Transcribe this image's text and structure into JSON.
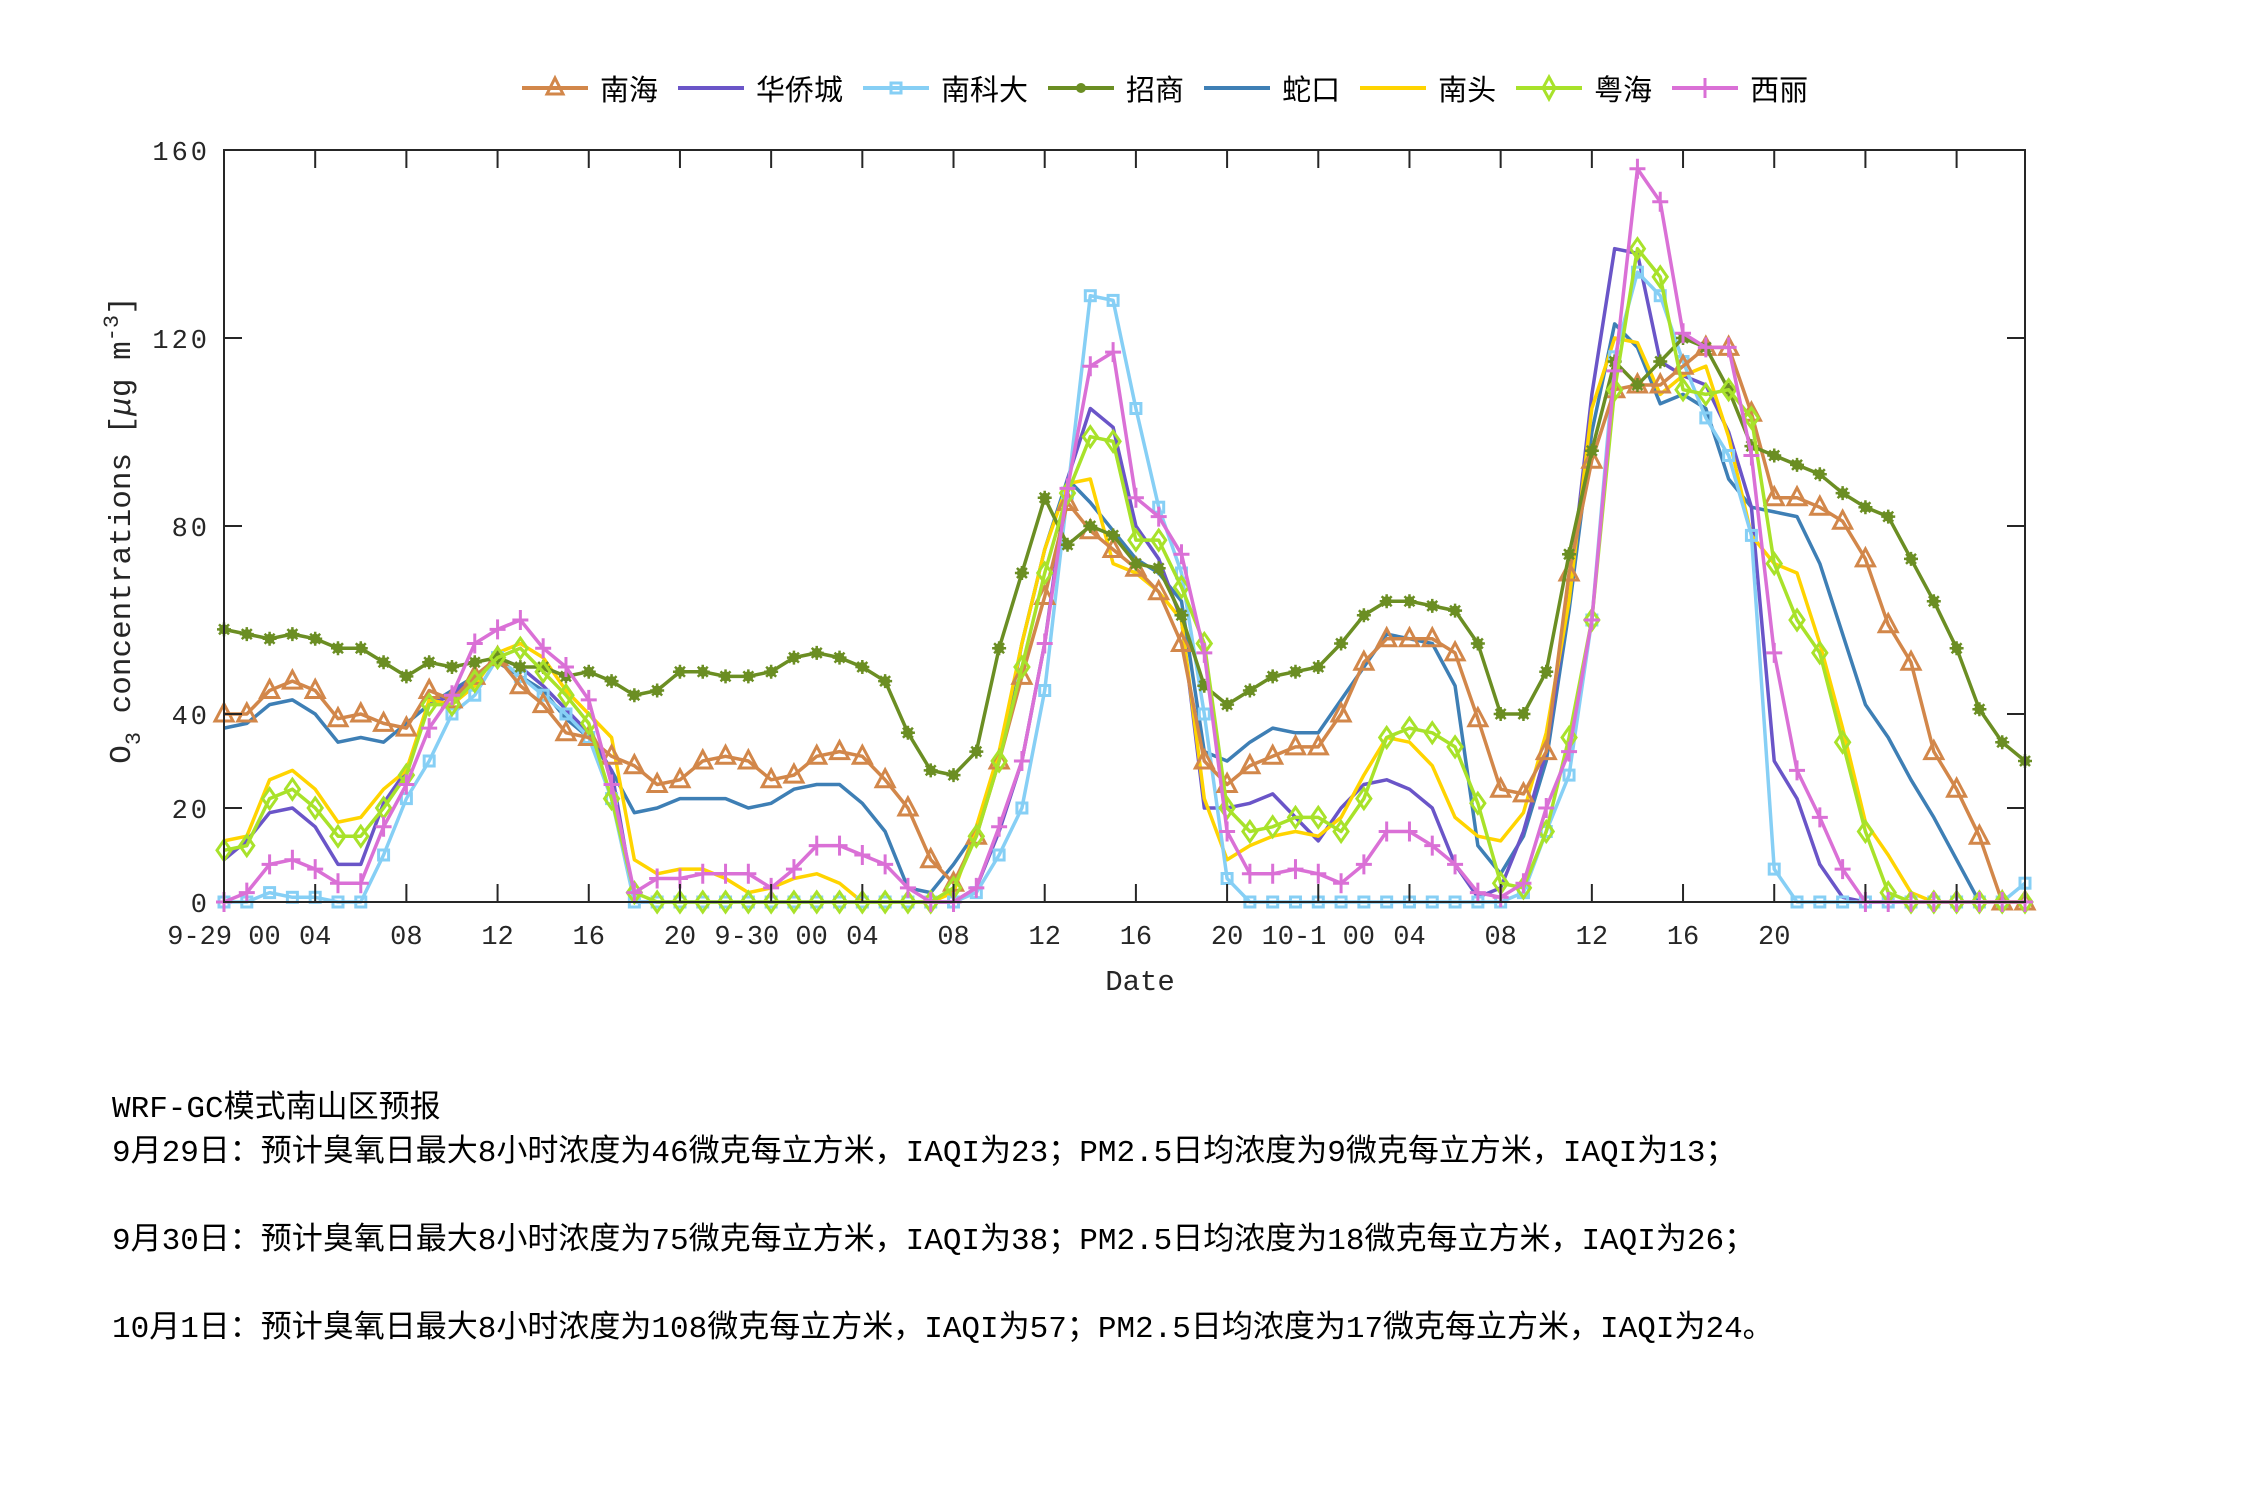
{
  "legend": [
    {
      "name": "南海",
      "color": "#D2874A",
      "marker": "triangle"
    },
    {
      "name": "华侨城",
      "color": "#6A55C8",
      "marker": "none"
    },
    {
      "name": "南科大",
      "color": "#86CFF5",
      "marker": "square"
    },
    {
      "name": "招商",
      "color": "#6B8E23",
      "marker": "star"
    },
    {
      "name": "蛇口",
      "color": "#3E7FB5",
      "marker": "none"
    },
    {
      "name": "南头",
      "color": "#FFD400",
      "marker": "none"
    },
    {
      "name": "粤海",
      "color": "#A8E22A",
      "marker": "diamond"
    },
    {
      "name": "西丽",
      "color": "#DA70D6",
      "marker": "plus"
    }
  ],
  "forecast": {
    "title": "WRF-GC模式南山区预报",
    "lines": [
      "9月29日：预计臭氧日最大8小时浓度为46微克每立方米，IAQI为23；PM2.5日均浓度为9微克每立方米，IAQI为13；",
      "9月30日：预计臭氧日最大8小时浓度为75微克每立方米，IAQI为38；PM2.5日均浓度为18微克每立方米，IAQI为26；",
      "10月1日：预计臭氧日最大8小时浓度为108微克每立方米，IAQI为57；PM2.5日均浓度为17微克每立方米，IAQI为24。"
    ]
  },
  "chart_data": {
    "type": "line",
    "title": "",
    "xlabel": "Date",
    "ylabel": "O3 concentrations [μg m-3]",
    "ylim": [
      0,
      160
    ],
    "xlim_hours": [
      0,
      79
    ],
    "y_ticks": [
      0,
      20,
      40,
      80,
      120,
      160
    ],
    "x_ticks": [
      {
        "hour": 0,
        "label": "9-29  00"
      },
      {
        "hour": 4,
        "label": "04"
      },
      {
        "hour": 8,
        "label": "08"
      },
      {
        "hour": 12,
        "label": "12"
      },
      {
        "hour": 16,
        "label": "16"
      },
      {
        "hour": 20,
        "label": "20"
      },
      {
        "hour": 24,
        "label": "9-30  00"
      },
      {
        "hour": 28,
        "label": "04"
      },
      {
        "hour": 32,
        "label": "08"
      },
      {
        "hour": 36,
        "label": "12"
      },
      {
        "hour": 40,
        "label": "16"
      },
      {
        "hour": 44,
        "label": "20"
      },
      {
        "hour": 48,
        "label": "10-1  00"
      },
      {
        "hour": 52,
        "label": "04"
      },
      {
        "hour": 56,
        "label": "08"
      },
      {
        "hour": 60,
        "label": "12"
      },
      {
        "hour": 64,
        "label": "16"
      },
      {
        "hour": 68,
        "label": "20"
      },
      {
        "hour": 72,
        "label": ""
      },
      {
        "hour": 76,
        "label": ""
      }
    ],
    "grid": false,
    "legend_position": "top",
    "x_start": "9-29 00:00",
    "x_step": "1 hour",
    "series": [
      {
        "name": "南海",
        "values": [
          40,
          40,
          45,
          47,
          45,
          39,
          40,
          38,
          37,
          45,
          43,
          48,
          52,
          46,
          42,
          36,
          35,
          31,
          29,
          25,
          26,
          30,
          31,
          30,
          26,
          27,
          31,
          32,
          31,
          26,
          20,
          9,
          4,
          14,
          30,
          48,
          65,
          85,
          79,
          75,
          71,
          66,
          55,
          30,
          25,
          29,
          31,
          33,
          33,
          40,
          51,
          56,
          56,
          56,
          53,
          39,
          24,
          23,
          32,
          70,
          94,
          109,
          110,
          110,
          114,
          118,
          118,
          104,
          86,
          86,
          84,
          81,
          73,
          59,
          51,
          32,
          24,
          14,
          0,
          0,
          0,
          0,
          5
        ]
      },
      {
        "name": "华侨城",
        "values": [
          9,
          13,
          19,
          20,
          16,
          8,
          8,
          21,
          28,
          42,
          44,
          48,
          52,
          50,
          46,
          41,
          36,
          28,
          0,
          0,
          0,
          0,
          0,
          0,
          0,
          0,
          0,
          0,
          0,
          0,
          0,
          0,
          0,
          3,
          15,
          30,
          55,
          90,
          105,
          101,
          80,
          73,
          60,
          20,
          20,
          21,
          23,
          18,
          13,
          20,
          25,
          26,
          24,
          20,
          8,
          1,
          3,
          15,
          32,
          65,
          108,
          139,
          138,
          115,
          112,
          110,
          100,
          84,
          30,
          22,
          8,
          1,
          0,
          0,
          0,
          0,
          0,
          0,
          0,
          0
        ]
      },
      {
        "name": "南科大",
        "values": [
          0,
          0,
          2,
          1,
          1,
          0,
          0,
          10,
          22,
          30,
          40,
          44,
          52,
          48,
          44,
          40,
          35,
          22,
          0,
          0,
          0,
          0,
          0,
          0,
          0,
          0,
          0,
          0,
          0,
          0,
          0,
          0,
          0,
          2,
          10,
          20,
          45,
          87,
          129,
          128,
          105,
          84,
          70,
          40,
          5,
          0,
          0,
          0,
          0,
          0,
          0,
          0,
          0,
          0,
          0,
          0,
          0,
          2,
          15,
          27,
          60,
          116,
          134,
          129,
          115,
          103,
          95,
          78,
          7,
          0,
          0,
          0,
          0,
          0,
          0,
          0,
          0,
          0,
          0,
          4
        ]
      },
      {
        "name": "招商",
        "values": [
          58,
          57,
          56,
          57,
          56,
          54,
          54,
          51,
          48,
          51,
          50,
          51,
          52,
          50,
          50,
          48,
          49,
          47,
          44,
          45,
          49,
          49,
          48,
          48,
          49,
          52,
          53,
          52,
          50,
          47,
          36,
          28,
          27,
          32,
          54,
          70,
          86,
          76,
          80,
          78,
          72,
          71,
          61,
          46,
          42,
          45,
          48,
          49,
          50,
          55,
          61,
          64,
          64,
          63,
          62,
          55,
          40,
          40,
          49,
          74,
          96,
          115,
          110,
          115,
          120,
          118,
          109,
          97,
          95,
          93,
          91,
          87,
          84,
          82,
          73,
          64,
          54,
          41,
          34,
          30,
          30
        ]
      },
      {
        "name": "蛇口",
        "values": [
          37,
          38,
          42,
          43,
          40,
          34,
          35,
          34,
          38,
          42,
          45,
          48,
          51,
          48,
          45,
          39,
          35,
          28,
          19,
          20,
          22,
          22,
          22,
          20,
          21,
          24,
          25,
          25,
          21,
          15,
          3,
          2,
          8,
          15,
          30,
          55,
          75,
          90,
          85,
          79,
          73,
          70,
          64,
          32,
          30,
          34,
          37,
          36,
          36,
          43,
          50,
          57,
          56,
          55,
          46,
          12,
          6,
          14,
          30,
          62,
          100,
          123,
          118,
          106,
          108,
          105,
          90,
          84,
          83,
          82,
          72,
          57,
          42,
          35,
          26,
          18,
          9,
          0,
          0,
          0,
          0,
          0
        ]
      },
      {
        "name": "南头",
        "values": [
          13,
          14,
          26,
          28,
          24,
          17,
          18,
          24,
          28,
          43,
          42,
          46,
          53,
          55,
          52,
          45,
          40,
          35,
          9,
          6,
          7,
          7,
          5,
          2,
          3,
          5,
          6,
          4,
          0,
          0,
          0,
          0,
          2,
          16,
          32,
          55,
          75,
          89,
          90,
          72,
          70,
          66,
          60,
          22,
          9,
          12,
          14,
          15,
          14,
          18,
          27,
          35,
          34,
          29,
          18,
          14,
          13,
          19,
          36,
          64,
          105,
          120,
          119,
          108,
          112,
          114,
          99,
          78,
          72,
          70,
          55,
          37,
          17,
          10,
          2,
          0,
          0,
          0,
          0,
          0,
          0
        ]
      },
      {
        "name": "粤海",
        "values": [
          11,
          12,
          22,
          24,
          20,
          14,
          14,
          20,
          27,
          42,
          42,
          47,
          52,
          54,
          49,
          44,
          38,
          22,
          2,
          0,
          0,
          0,
          0,
          0,
          0,
          0,
          0,
          0,
          0,
          0,
          0,
          0,
          3,
          14,
          30,
          50,
          70,
          87,
          99,
          98,
          77,
          77,
          67,
          55,
          20,
          15,
          16,
          18,
          18,
          15,
          22,
          35,
          37,
          36,
          33,
          21,
          4,
          3,
          15,
          35,
          60,
          109,
          139,
          133,
          109,
          108,
          109,
          103,
          72,
          60,
          53,
          34,
          15,
          2,
          0,
          0,
          0,
          0,
          0,
          0,
          5
        ]
      },
      {
        "name": "西丽",
        "values": [
          0,
          2,
          8,
          9,
          7,
          4,
          4,
          16,
          25,
          37,
          44,
          55,
          58,
          60,
          54,
          50,
          43,
          25,
          2,
          5,
          5,
          6,
          6,
          6,
          3,
          7,
          12,
          12,
          10,
          8,
          3,
          0,
          0,
          3,
          16,
          30,
          55,
          88,
          114,
          117,
          86,
          82,
          74,
          53,
          15,
          6,
          6,
          7,
          6,
          4,
          8,
          15,
          15,
          12,
          8,
          2,
          1,
          4,
          20,
          32,
          60,
          113,
          156,
          149,
          121,
          118,
          118,
          95,
          53,
          28,
          18,
          7,
          0,
          0,
          0,
          0,
          0,
          0,
          0,
          0,
          7
        ]
      }
    ]
  }
}
